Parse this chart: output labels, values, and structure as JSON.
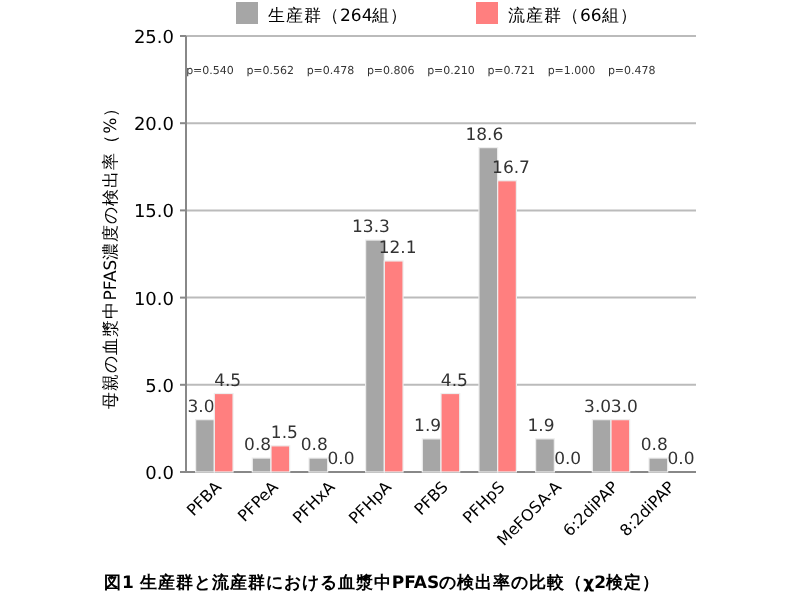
{
  "chart_data": {
    "type": "bar",
    "xlabel": null,
    "ylabel": "母親の血漿中PFAS濃度の検出率（%）",
    "categories": [
      "PFBA",
      "PFPeA",
      "PFHxA",
      "PFHpA",
      "PFBS",
      "PFHpS",
      "MeFOSA-A",
      "6:2diPAP",
      "8:2diPAP"
    ],
    "series": [
      {
        "name": "生産群（264組）",
        "color": "#a6a6a6",
        "values": [
          3.0,
          0.8,
          0.8,
          13.3,
          1.9,
          18.6,
          1.9,
          3.0,
          0.8
        ],
        "value_labels": [
          "3.0",
          "0.8",
          "0.8",
          "13.3",
          "1.9",
          "18.6",
          "1.9",
          "3.0",
          "0.8"
        ]
      },
      {
        "name": "流産群（66組）",
        "color": "#ff7f7f",
        "values": [
          4.5,
          1.5,
          0.0,
          12.1,
          4.5,
          16.7,
          0.0,
          3.0,
          0.0
        ],
        "value_labels": [
          "4.5",
          "1.5",
          "0.0",
          "12.1",
          "4.5",
          "16.7",
          "0.0",
          "3.0",
          "0.0"
        ]
      }
    ],
    "ylim": [
      0,
      25
    ],
    "yticks": [
      {
        "value": 0,
        "label": "0.0"
      },
      {
        "value": 5,
        "label": "5.0"
      },
      {
        "value": 10,
        "label": "10.0"
      },
      {
        "value": 15,
        "label": "15.0"
      },
      {
        "value": 20,
        "label": "20.0"
      },
      {
        "value": 25,
        "label": "25.0"
      }
    ],
    "grid": "y",
    "legend": "top",
    "annotations": [
      "p=0.540",
      "p=0.562",
      "p=0.478",
      "p=0.806",
      "p=0.210",
      "p=0.721",
      "p=1.000",
      "p=0.478",
      "図1 生産群と流産群における血漿中PFASの検出率の比較（χ2検定）"
    ]
  }
}
